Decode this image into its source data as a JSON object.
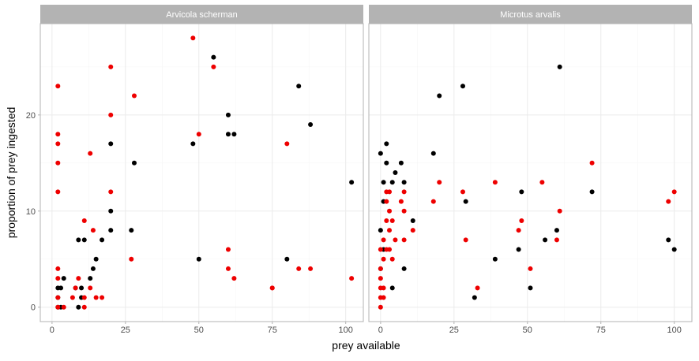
{
  "chart_data": {
    "type": "scatter",
    "title": "",
    "xlabel": "prey available",
    "ylabel": "proportion of prey ingested",
    "xlim": [
      -4,
      106
    ],
    "ylim": [
      -1.5,
      29.5
    ],
    "x_ticks": [
      0,
      25,
      50,
      75,
      100
    ],
    "y_ticks": [
      0,
      10,
      20
    ],
    "grid": true,
    "legend": "none",
    "colors": {
      "black_series": "#000000",
      "red_series": "#ee0000"
    },
    "panels": [
      {
        "name": "Arvicola scherman",
        "series": [
          {
            "color": "black",
            "points": [
              {
                "x": 2,
                "y": 0
              },
              {
                "x": 2,
                "y": 1
              },
              {
                "x": 2,
                "y": 2
              },
              {
                "x": 3,
                "y": 2
              },
              {
                "x": 3,
                "y": 0
              },
              {
                "x": 4,
                "y": 3
              },
              {
                "x": 8,
                "y": 2
              },
              {
                "x": 9,
                "y": 0
              },
              {
                "x": 9,
                "y": 7
              },
              {
                "x": 10,
                "y": 1
              },
              {
                "x": 10,
                "y": 2
              },
              {
                "x": 11,
                "y": 7
              },
              {
                "x": 13,
                "y": 3
              },
              {
                "x": 14,
                "y": 4
              },
              {
                "x": 15,
                "y": 5
              },
              {
                "x": 17,
                "y": 7
              },
              {
                "x": 20,
                "y": 8
              },
              {
                "x": 20,
                "y": 10
              },
              {
                "x": 20,
                "y": 17
              },
              {
                "x": 27,
                "y": 8
              },
              {
                "x": 28,
                "y": 15
              },
              {
                "x": 48,
                "y": 17
              },
              {
                "x": 50,
                "y": 5
              },
              {
                "x": 55,
                "y": 26
              },
              {
                "x": 60,
                "y": 18
              },
              {
                "x": 60,
                "y": 20
              },
              {
                "x": 62,
                "y": 18
              },
              {
                "x": 80,
                "y": 5
              },
              {
                "x": 84,
                "y": 23
              },
              {
                "x": 88,
                "y": 19
              },
              {
                "x": 102,
                "y": 13
              }
            ]
          },
          {
            "color": "red",
            "points": [
              {
                "x": 2,
                "y": 0
              },
              {
                "x": 2,
                "y": 1
              },
              {
                "x": 2,
                "y": 3
              },
              {
                "x": 2,
                "y": 4
              },
              {
                "x": 2,
                "y": 12
              },
              {
                "x": 2,
                "y": 15
              },
              {
                "x": 2,
                "y": 17
              },
              {
                "x": 2,
                "y": 18
              },
              {
                "x": 2,
                "y": 23
              },
              {
                "x": 4,
                "y": 0
              },
              {
                "x": 7,
                "y": 1
              },
              {
                "x": 8,
                "y": 2
              },
              {
                "x": 9,
                "y": 3
              },
              {
                "x": 11,
                "y": 0
              },
              {
                "x": 11,
                "y": 1
              },
              {
                "x": 11,
                "y": 9
              },
              {
                "x": 13,
                "y": 2
              },
              {
                "x": 13,
                "y": 16
              },
              {
                "x": 14,
                "y": 8
              },
              {
                "x": 15,
                "y": 1
              },
              {
                "x": 17,
                "y": 1
              },
              {
                "x": 20,
                "y": 12
              },
              {
                "x": 20,
                "y": 20
              },
              {
                "x": 20,
                "y": 25
              },
              {
                "x": 27,
                "y": 5
              },
              {
                "x": 28,
                "y": 22
              },
              {
                "x": 48,
                "y": 28
              },
              {
                "x": 50,
                "y": 18
              },
              {
                "x": 55,
                "y": 25
              },
              {
                "x": 60,
                "y": 4
              },
              {
                "x": 60,
                "y": 6
              },
              {
                "x": 62,
                "y": 3
              },
              {
                "x": 75,
                "y": 2
              },
              {
                "x": 75,
                "y": 2
              },
              {
                "x": 80,
                "y": 17
              },
              {
                "x": 84,
                "y": 4
              },
              {
                "x": 88,
                "y": 4
              },
              {
                "x": 102,
                "y": 3
              }
            ]
          }
        ]
      },
      {
        "name": "Microtus arvalis",
        "series": [
          {
            "color": "black",
            "points": [
              {
                "x": 0,
                "y": 16
              },
              {
                "x": 0,
                "y": 8
              },
              {
                "x": 0,
                "y": 4
              },
              {
                "x": 1,
                "y": 6
              },
              {
                "x": 1,
                "y": 11
              },
              {
                "x": 1,
                "y": 13
              },
              {
                "x": 2,
                "y": 17
              },
              {
                "x": 2,
                "y": 15
              },
              {
                "x": 4,
                "y": 2
              },
              {
                "x": 4,
                "y": 13
              },
              {
                "x": 5,
                "y": 14
              },
              {
                "x": 7,
                "y": 15
              },
              {
                "x": 8,
                "y": 4
              },
              {
                "x": 8,
                "y": 13
              },
              {
                "x": 11,
                "y": 9
              },
              {
                "x": 18,
                "y": 16
              },
              {
                "x": 20,
                "y": 22
              },
              {
                "x": 28,
                "y": 23
              },
              {
                "x": 29,
                "y": 11
              },
              {
                "x": 32,
                "y": 1
              },
              {
                "x": 39,
                "y": 5
              },
              {
                "x": 47,
                "y": 6
              },
              {
                "x": 48,
                "y": 12
              },
              {
                "x": 51,
                "y": 2
              },
              {
                "x": 56,
                "y": 7
              },
              {
                "x": 60,
                "y": 8
              },
              {
                "x": 61,
                "y": 25
              },
              {
                "x": 72,
                "y": 12
              },
              {
                "x": 98,
                "y": 7
              },
              {
                "x": 100,
                "y": 6
              }
            ]
          },
          {
            "color": "red",
            "points": [
              {
                "x": 0,
                "y": 0
              },
              {
                "x": 0,
                "y": 1
              },
              {
                "x": 0,
                "y": 2
              },
              {
                "x": 0,
                "y": 3
              },
              {
                "x": 0,
                "y": 4
              },
              {
                "x": 0,
                "y": 6
              },
              {
                "x": 1,
                "y": 1
              },
              {
                "x": 1,
                "y": 2
              },
              {
                "x": 1,
                "y": 5
              },
              {
                "x": 1,
                "y": 7
              },
              {
                "x": 2,
                "y": 11
              },
              {
                "x": 2,
                "y": 12
              },
              {
                "x": 2,
                "y": 6
              },
              {
                "x": 2,
                "y": 9
              },
              {
                "x": 3,
                "y": 8
              },
              {
                "x": 3,
                "y": 10
              },
              {
                "x": 3,
                "y": 12
              },
              {
                "x": 3,
                "y": 6
              },
              {
                "x": 4,
                "y": 9
              },
              {
                "x": 4,
                "y": 5
              },
              {
                "x": 5,
                "y": 7
              },
              {
                "x": 7,
                "y": 11
              },
              {
                "x": 8,
                "y": 7
              },
              {
                "x": 8,
                "y": 10
              },
              {
                "x": 8,
                "y": 12
              },
              {
                "x": 11,
                "y": 8
              },
              {
                "x": 18,
                "y": 11
              },
              {
                "x": 20,
                "y": 13
              },
              {
                "x": 28,
                "y": 12
              },
              {
                "x": 29,
                "y": 7
              },
              {
                "x": 33,
                "y": 2
              },
              {
                "x": 39,
                "y": 13
              },
              {
                "x": 47,
                "y": 8
              },
              {
                "x": 48,
                "y": 9
              },
              {
                "x": 51,
                "y": 4
              },
              {
                "x": 55,
                "y": 13
              },
              {
                "x": 60,
                "y": 7
              },
              {
                "x": 61,
                "y": 10
              },
              {
                "x": 72,
                "y": 15
              },
              {
                "x": 98,
                "y": 11
              },
              {
                "x": 100,
                "y": 12
              }
            ]
          }
        ]
      }
    ]
  }
}
